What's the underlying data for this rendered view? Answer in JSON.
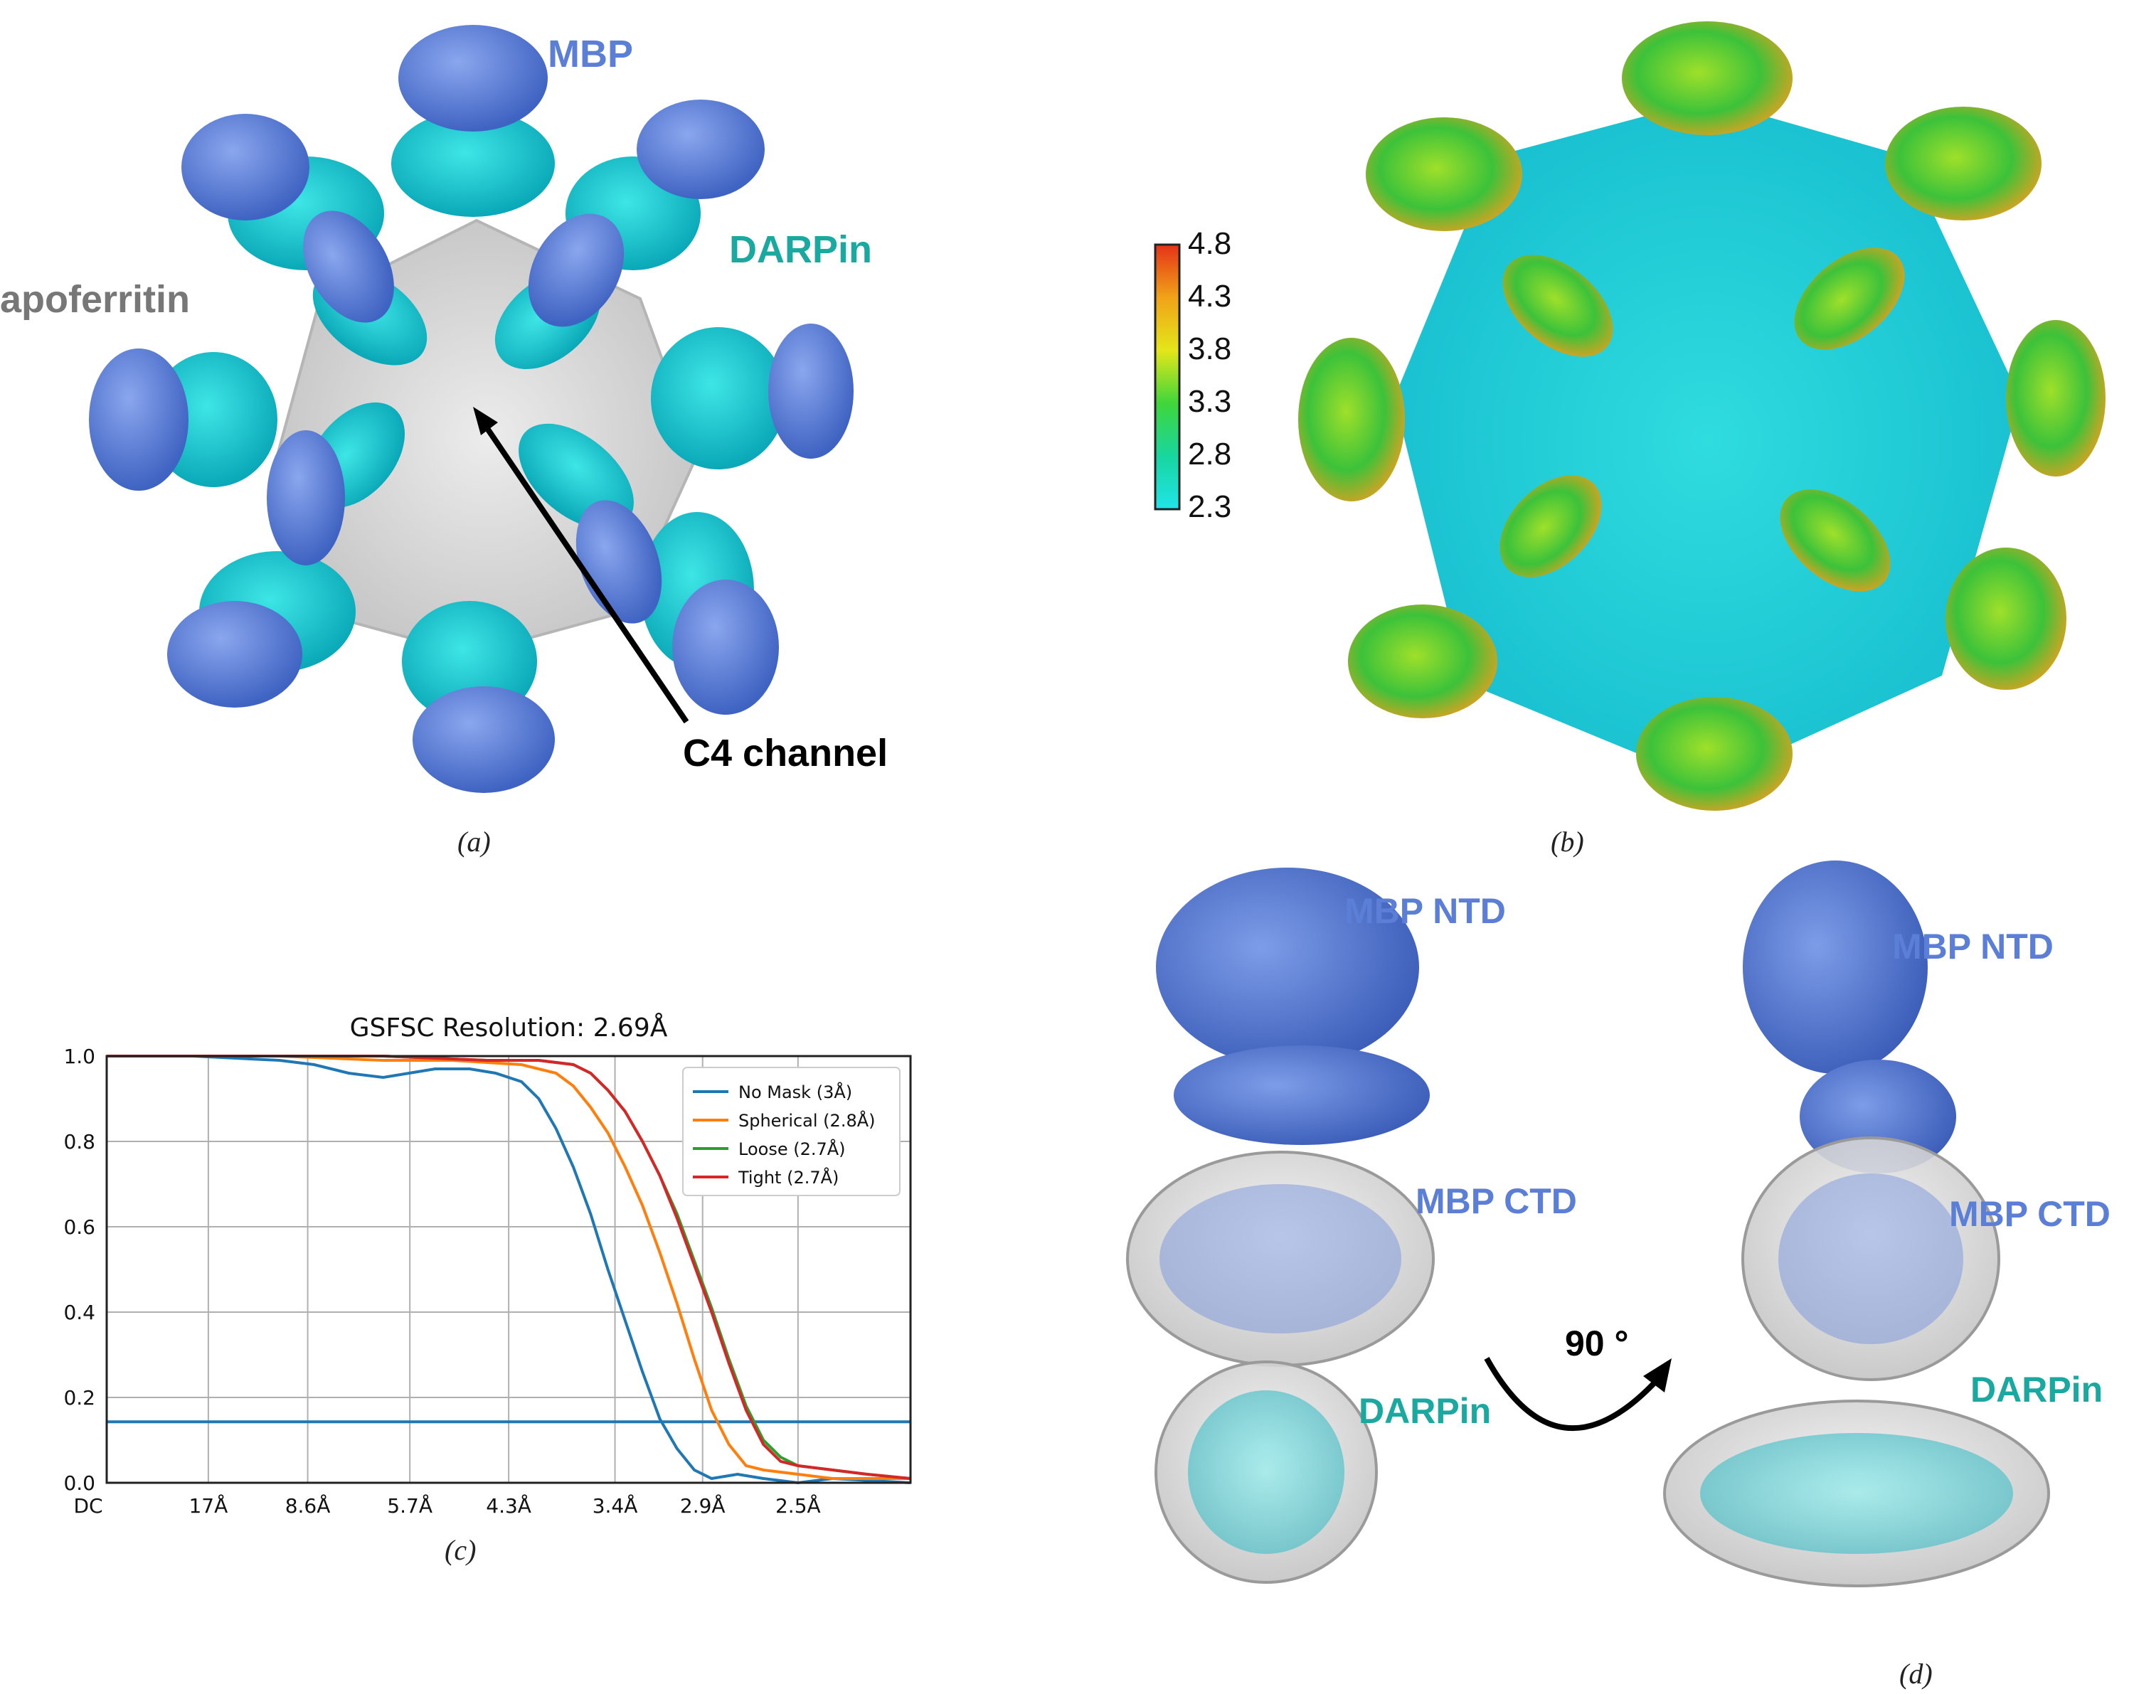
{
  "panel_a": {
    "label": "(a)",
    "mbp": "MBP",
    "darpin": "DARPin",
    "apoferritin": "apoferritin",
    "c4": "C4 channel"
  },
  "panel_b": {
    "label": "(b)",
    "colorbar": {
      "ticks": [
        "4.8",
        "4.3",
        "3.8",
        "3.3",
        "2.8",
        "2.3"
      ]
    }
  },
  "panel_d": {
    "label": "(d)",
    "ntd_left": "MBP NTD",
    "ctd_left": "MBP CTD",
    "darpin_left": "DARPin",
    "ntd_right": "MBP NTD",
    "ctd_right": "MBP CTD",
    "darpin_right": "DARPin",
    "rotation": "90 °"
  },
  "colors": {
    "mbp": "#5b7fd6",
    "darpin": "#13c7c7",
    "apoferritin": "#d9d9d9",
    "darpin_text": "#1aa9a0",
    "gray_text": "#777777"
  },
  "chart_data": {
    "type": "line",
    "label": "(c)",
    "title": "GSFSC Resolution: 2.69Å",
    "xlabel": "",
    "ylabel": "",
    "x_ticks": [
      "DC",
      "17Å",
      "8.6Å",
      "5.7Å",
      "4.3Å",
      "3.4Å",
      "2.9Å",
      "2.5Å"
    ],
    "x_tick_positions": [
      0,
      0.0588,
      0.1163,
      0.1754,
      0.2326,
      0.2941,
      0.3448,
      0.4
    ],
    "xlim": [
      0,
      0.4651
    ],
    "ylim": [
      0.0,
      1.0
    ],
    "y_ticks": [
      "0.0",
      "0.2",
      "0.4",
      "0.6",
      "0.8",
      "1.0"
    ],
    "threshold": 0.143,
    "grid": true,
    "legend_position": "top-right",
    "series": [
      {
        "name": "No Mask (3Å)",
        "color": "#1f77b4",
        "x": [
          0,
          0.05,
          0.1,
          0.12,
          0.14,
          0.16,
          0.175,
          0.19,
          0.21,
          0.225,
          0.24,
          0.25,
          0.26,
          0.27,
          0.28,
          0.29,
          0.3,
          0.31,
          0.32,
          0.33,
          0.34,
          0.35,
          0.365,
          0.38,
          0.4,
          0.42,
          0.4651
        ],
        "y": [
          1.0,
          1.0,
          0.99,
          0.98,
          0.96,
          0.95,
          0.96,
          0.97,
          0.97,
          0.96,
          0.94,
          0.9,
          0.83,
          0.74,
          0.63,
          0.5,
          0.38,
          0.26,
          0.15,
          0.08,
          0.03,
          0.01,
          0.02,
          0.01,
          0.0,
          0.01,
          0.0
        ]
      },
      {
        "name": "Spherical (2.8Å)",
        "color": "#ff7f0e",
        "x": [
          0,
          0.1,
          0.16,
          0.2,
          0.24,
          0.26,
          0.27,
          0.28,
          0.29,
          0.3,
          0.31,
          0.32,
          0.33,
          0.34,
          0.35,
          0.36,
          0.37,
          0.38,
          0.4,
          0.42,
          0.4651
        ],
        "y": [
          1.0,
          1.0,
          0.99,
          0.99,
          0.98,
          0.96,
          0.93,
          0.88,
          0.82,
          0.74,
          0.65,
          0.54,
          0.42,
          0.29,
          0.17,
          0.09,
          0.04,
          0.03,
          0.02,
          0.01,
          0.01
        ]
      },
      {
        "name": "Loose (2.7Å)",
        "color": "#2ca02c",
        "x": [
          0,
          0.1,
          0.16,
          0.22,
          0.25,
          0.27,
          0.28,
          0.29,
          0.3,
          0.31,
          0.32,
          0.33,
          0.34,
          0.35,
          0.36,
          0.37,
          0.38,
          0.39,
          0.4,
          0.42,
          0.44,
          0.4651
        ],
        "y": [
          1.0,
          1.0,
          1.0,
          0.99,
          0.99,
          0.98,
          0.96,
          0.92,
          0.87,
          0.8,
          0.72,
          0.63,
          0.52,
          0.41,
          0.29,
          0.18,
          0.1,
          0.06,
          0.04,
          0.03,
          0.02,
          0.01
        ]
      },
      {
        "name": "Tight (2.7Å)",
        "color": "#d62728",
        "x": [
          0,
          0.1,
          0.16,
          0.22,
          0.25,
          0.27,
          0.28,
          0.29,
          0.3,
          0.31,
          0.32,
          0.33,
          0.34,
          0.35,
          0.36,
          0.37,
          0.38,
          0.39,
          0.4,
          0.42,
          0.44,
          0.4651
        ],
        "y": [
          1.0,
          1.0,
          1.0,
          0.99,
          0.99,
          0.98,
          0.96,
          0.92,
          0.87,
          0.8,
          0.72,
          0.62,
          0.51,
          0.4,
          0.28,
          0.17,
          0.09,
          0.05,
          0.04,
          0.03,
          0.02,
          0.01
        ]
      }
    ]
  }
}
